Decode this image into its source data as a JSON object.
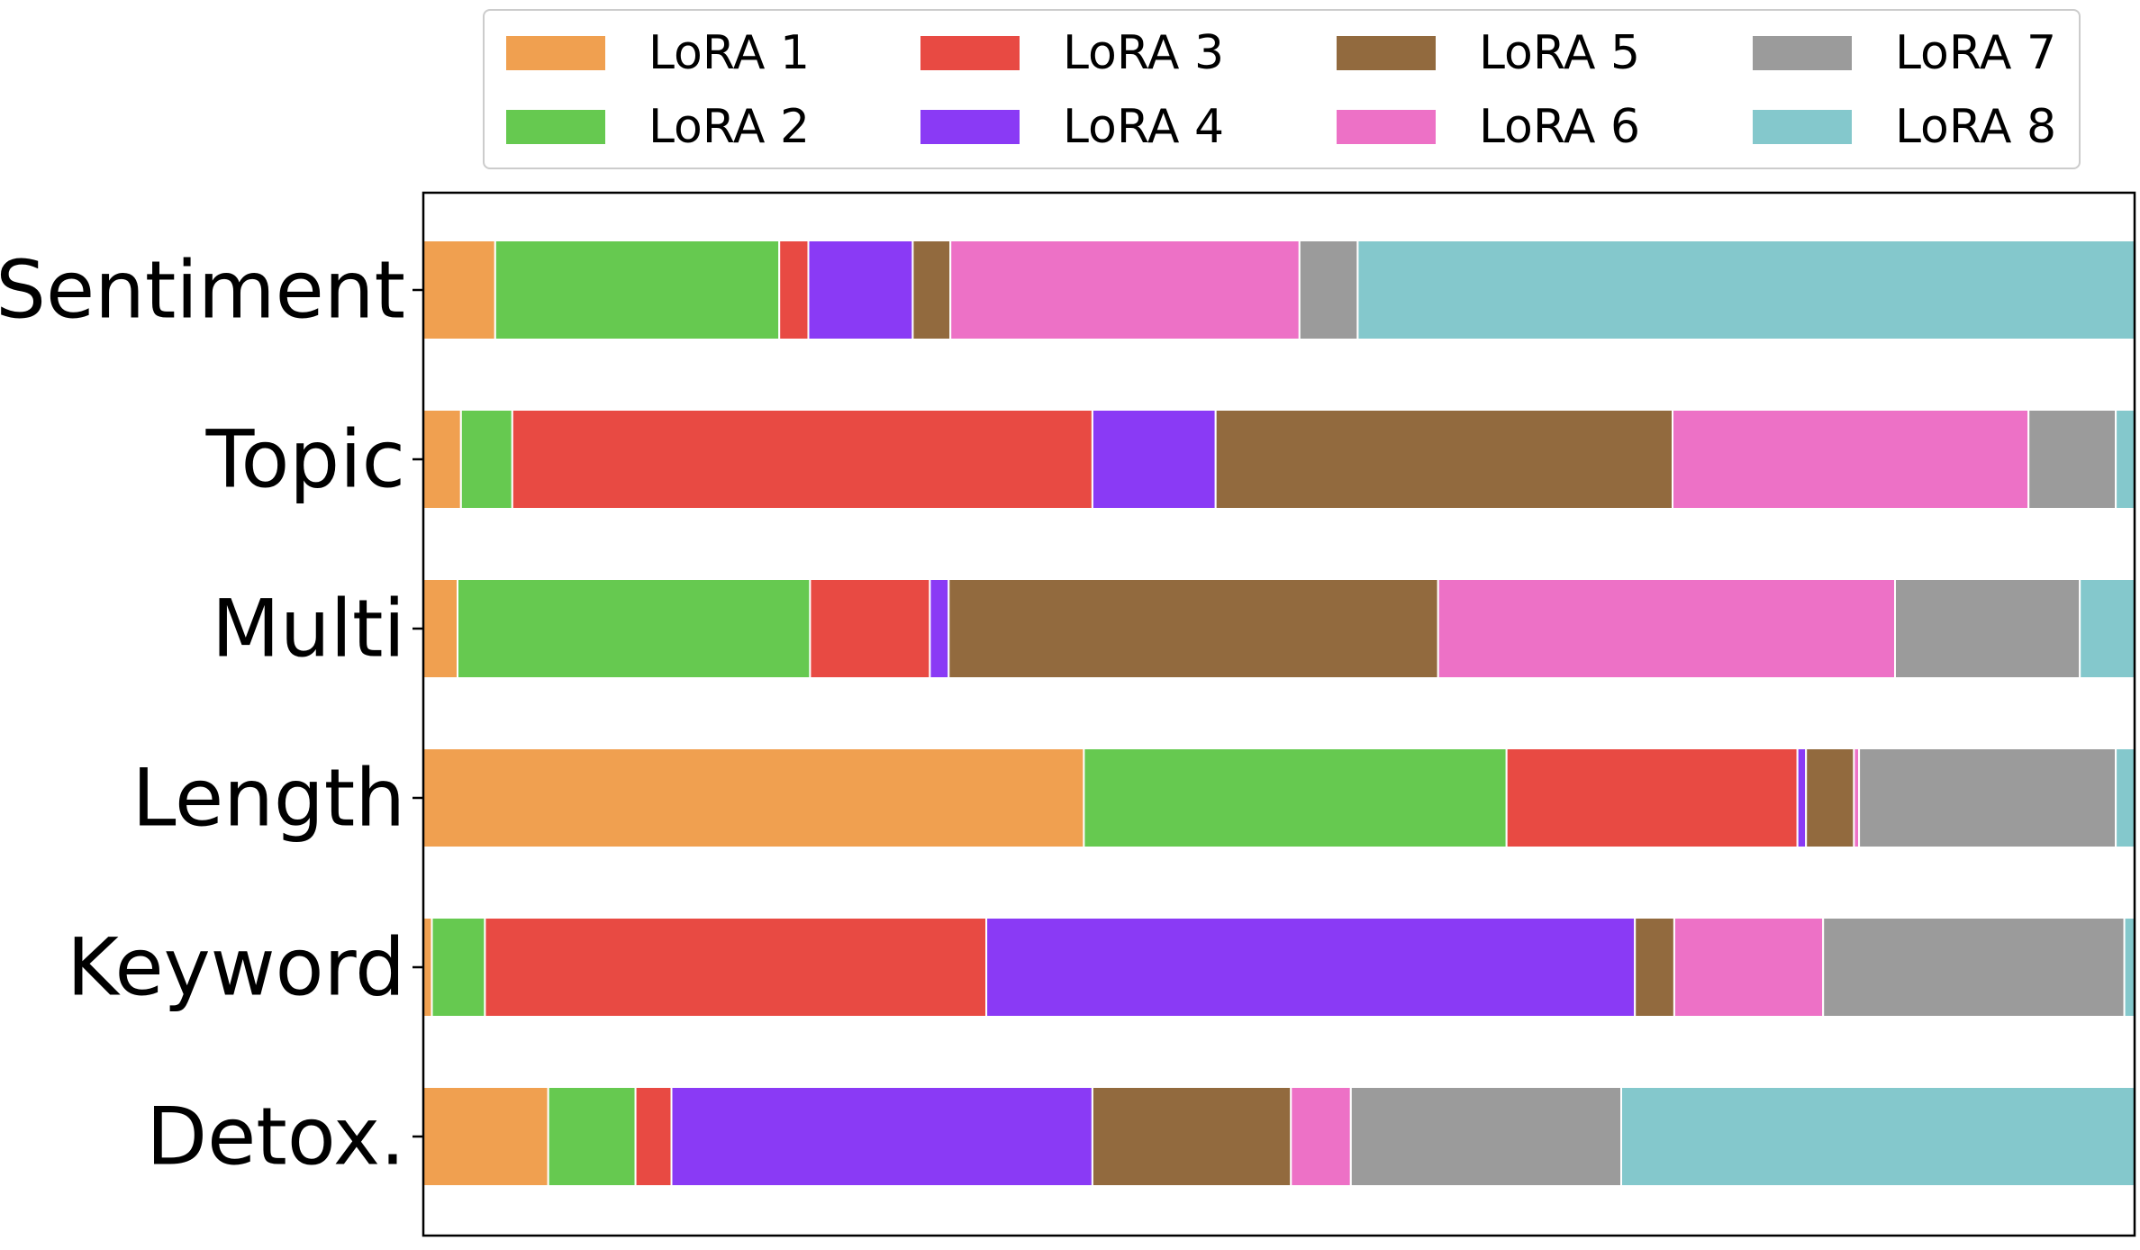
{
  "chart_data": {
    "type": "bar",
    "orientation": "horizontal",
    "stacked": true,
    "title": "",
    "xlabel": "",
    "ylabel": "",
    "xlim": [
      0,
      1
    ],
    "categories": [
      "Sentiment",
      "Topic",
      "Multi",
      "Length",
      "Keyword",
      "Detox."
    ],
    "series": [
      {
        "name": "LoRA 1",
        "color": "#F0A050",
        "values": [
          0.042,
          0.022,
          0.02,
          0.386,
          0.005,
          0.073
        ]
      },
      {
        "name": "LoRA 2",
        "color": "#66C950",
        "values": [
          0.166,
          0.03,
          0.206,
          0.247,
          0.031,
          0.051
        ]
      },
      {
        "name": "LoRA 3",
        "color": "#E84A43",
        "values": [
          0.017,
          0.339,
          0.07,
          0.17,
          0.293,
          0.021
        ]
      },
      {
        "name": "LoRA 4",
        "color": "#8A3AF5",
        "values": [
          0.061,
          0.072,
          0.011,
          0.005,
          0.379,
          0.246
        ]
      },
      {
        "name": "LoRA 5",
        "color": "#926A3E",
        "values": [
          0.022,
          0.267,
          0.286,
          0.028,
          0.023,
          0.116
        ]
      },
      {
        "name": "LoRA 6",
        "color": "#ED71C6",
        "values": [
          0.204,
          0.208,
          0.267,
          0.003,
          0.087,
          0.035
        ]
      },
      {
        "name": "LoRA 7",
        "color": "#9B9B9B",
        "values": [
          0.034,
          0.051,
          0.108,
          0.15,
          0.176,
          0.158
        ]
      },
      {
        "name": "LoRA 8",
        "color": "#84C8CC",
        "values": [
          0.454,
          0.011,
          0.032,
          0.011,
          0.006,
          0.3
        ]
      }
    ],
    "legend": {
      "location": "top",
      "columns": 4
    }
  }
}
